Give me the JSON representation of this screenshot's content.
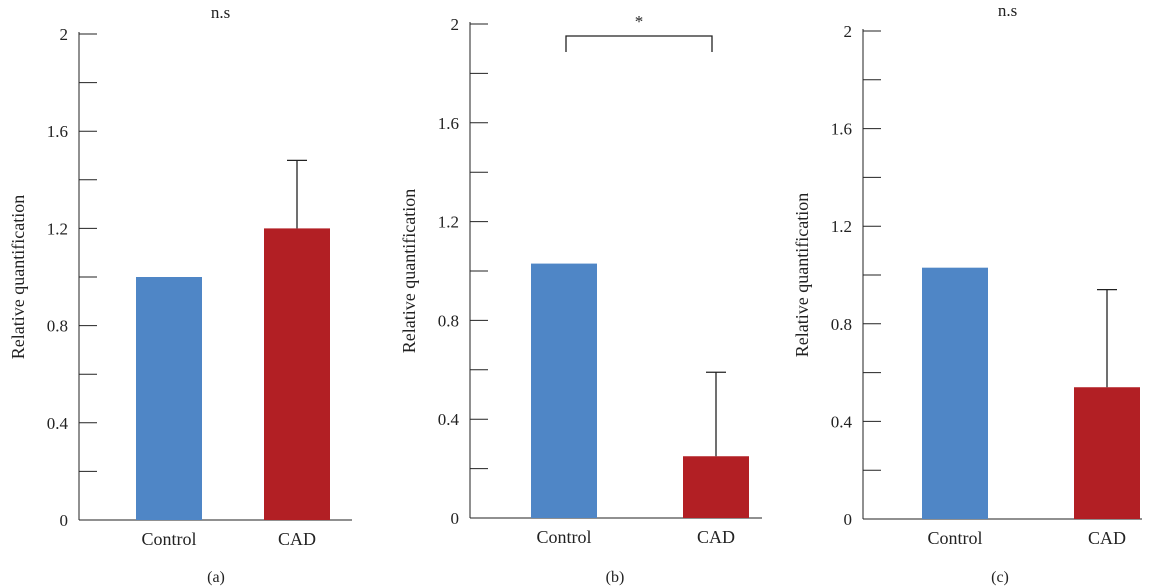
{
  "chart_data": [
    {
      "type": "bar",
      "panel": "(a)",
      "ylabel": "Relative quantification",
      "categories": [
        "Control",
        "CAD"
      ],
      "values": [
        1.0,
        1.2
      ],
      "errors": [
        0,
        0.28
      ],
      "ylim": [
        0,
        2
      ],
      "yticks": [
        "0",
        "0.4",
        "0.8",
        "1.2",
        "1.6",
        "2"
      ],
      "significance": "n.s",
      "colors": [
        "#4f86c6",
        "#b21f24"
      ]
    },
    {
      "type": "bar",
      "panel": "(b)",
      "ylabel": "Relative quantification",
      "categories": [
        "Control",
        "CAD"
      ],
      "values": [
        1.03,
        0.25
      ],
      "errors": [
        0,
        0.34
      ],
      "ylim": [
        0,
        2
      ],
      "yticks": [
        "0",
        "0.4",
        "0.8",
        "1.2",
        "1.6",
        "2"
      ],
      "significance": "*",
      "colors": [
        "#4f86c6",
        "#b21f24"
      ]
    },
    {
      "type": "bar",
      "panel": "(c)",
      "ylabel": "Relative quantification",
      "categories": [
        "Control",
        "CAD"
      ],
      "values": [
        1.03,
        0.54
      ],
      "errors": [
        0,
        0.4
      ],
      "ylim": [
        0,
        2
      ],
      "yticks": [
        "0",
        "0.4",
        "0.8",
        "1.2",
        "1.6",
        "2"
      ],
      "significance": "n.s",
      "colors": [
        "#4f86c6",
        "#b21f24"
      ]
    }
  ]
}
